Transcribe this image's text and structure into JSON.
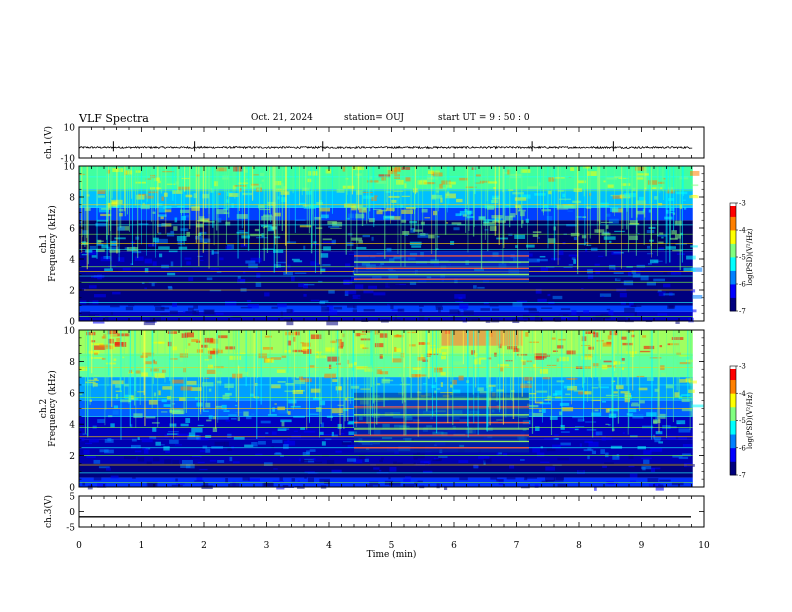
{
  "header": {
    "title": "VLF Spectra",
    "date": "Oct. 21, 2024",
    "station": "station= OUJ",
    "start": "start  UT =  9 : 50 : 0"
  },
  "chart_data": [
    {
      "type": "line",
      "panel": "ch1-waveform",
      "ylabel": "ch.1(V)",
      "ylim": [
        -10,
        10
      ],
      "yticks": [
        "10",
        "-10"
      ],
      "x_range": [
        0,
        9.82
      ],
      "baseline": -3.2,
      "color": "#000000"
    },
    {
      "type": "heatmap",
      "panel": "ch1-spectrogram",
      "ylabel": "ch.1\nFrequency (kHz)",
      "ylim": [
        0,
        10
      ],
      "yticks": [
        "0",
        "2",
        "4",
        "6",
        "8",
        "10"
      ],
      "x_range": [
        0,
        9.82
      ],
      "colorbar": {
        "label": "log(PSD)(V²/Hz)",
        "range": [
          -7,
          -3
        ],
        "ticks": [
          "-3",
          "-4",
          "-5",
          "-6",
          "-7"
        ]
      }
    },
    {
      "type": "heatmap",
      "panel": "ch2-spectrogram",
      "ylabel": "ch.2\nFrequency (kHz)",
      "ylim": [
        0,
        10
      ],
      "yticks": [
        "0",
        "2",
        "4",
        "6",
        "8",
        "10"
      ],
      "x_range": [
        0,
        9.82
      ],
      "colorbar": {
        "label": "log(PSD)(V²/Hz)",
        "range": [
          -7,
          -3
        ],
        "ticks": [
          "-3",
          "-4",
          "-5",
          "-6",
          "-7"
        ]
      }
    },
    {
      "type": "line",
      "panel": "ch3-waveform",
      "ylabel": "ch.3(V)",
      "ylim": [
        -5,
        5
      ],
      "yticks": [
        "5",
        "0",
        "-5"
      ],
      "x_range": [
        0,
        9.82
      ],
      "baseline": -1.7,
      "color": "#000000"
    }
  ],
  "xaxis": {
    "label": "Time (min)",
    "range": [
      0,
      10
    ],
    "ticks": [
      "0",
      "1",
      "2",
      "3",
      "4",
      "5",
      "6",
      "7",
      "8",
      "9",
      "10"
    ]
  },
  "colors": {
    "colormap": [
      "#000000",
      "#00007f",
      "#0000ff",
      "#0080ff",
      "#00ffff",
      "#80ff80",
      "#ffff00",
      "#ff8000",
      "#ff0000",
      "#ffffff"
    ]
  }
}
